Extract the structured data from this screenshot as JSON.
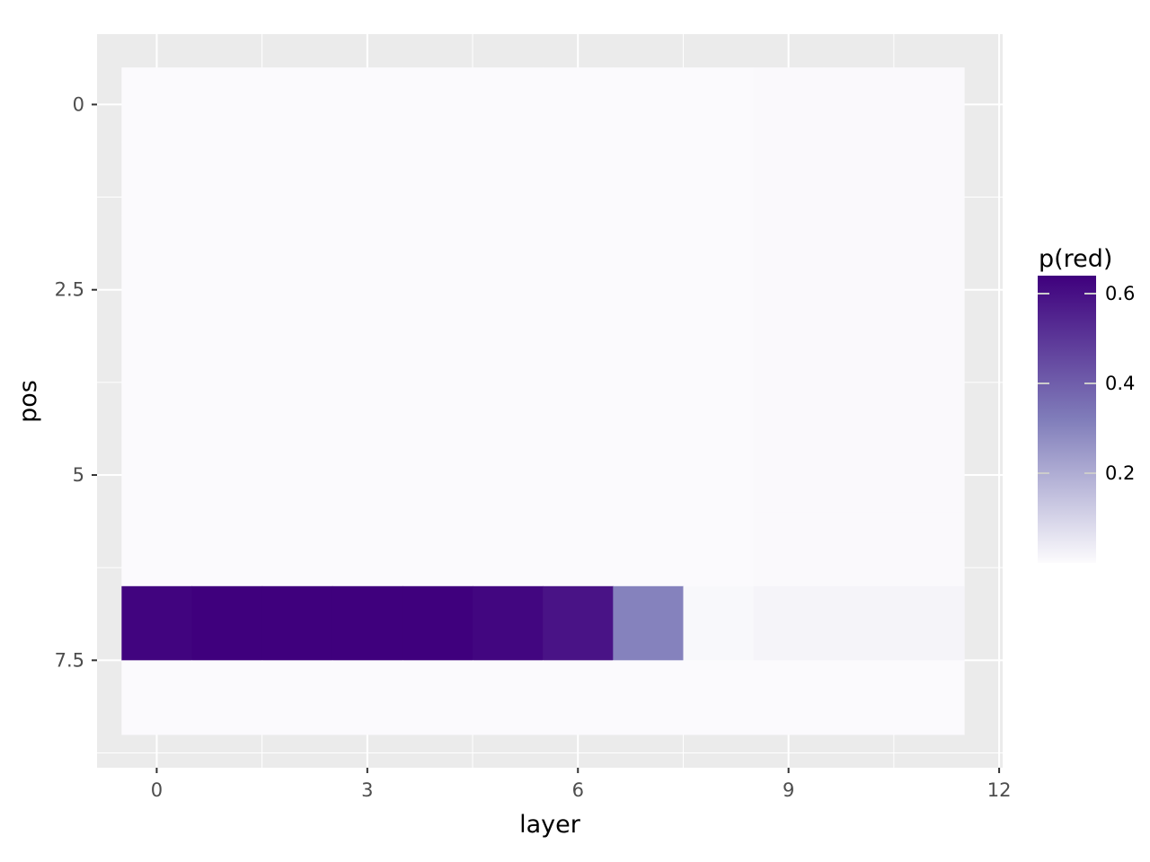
{
  "chart_data": {
    "type": "heatmap",
    "xlabel": "layer",
    "ylabel": "pos",
    "x": [
      0,
      1,
      2,
      3,
      4,
      5,
      6,
      7,
      8,
      9,
      10,
      11
    ],
    "y": [
      0,
      1,
      2,
      3,
      4,
      5,
      6,
      7,
      8
    ],
    "xlim": [
      -0.85,
      12.05
    ],
    "ylim": [
      -0.95,
      8.95
    ],
    "y_reversed": true,
    "x_ticks": [
      0,
      3,
      6,
      9,
      12
    ],
    "x_tick_labels": [
      "0",
      "3",
      "6",
      "9",
      "12"
    ],
    "y_ticks": [
      0,
      2.5,
      5,
      7.5
    ],
    "y_tick_labels": [
      "0",
      "2.5",
      "5",
      "7.5"
    ],
    "grid": true,
    "background_color": "#ebebeb",
    "values": [
      [
        0.002,
        0.002,
        0.002,
        0.002,
        0.002,
        0.002,
        0.002,
        0.002,
        0.002,
        0.006,
        0.006,
        0.006
      ],
      [
        0.002,
        0.002,
        0.002,
        0.002,
        0.002,
        0.002,
        0.002,
        0.002,
        0.002,
        0.006,
        0.006,
        0.006
      ],
      [
        0.002,
        0.002,
        0.002,
        0.002,
        0.002,
        0.002,
        0.002,
        0.002,
        0.002,
        0.006,
        0.006,
        0.006
      ],
      [
        0.002,
        0.002,
        0.002,
        0.002,
        0.002,
        0.002,
        0.002,
        0.002,
        0.002,
        0.006,
        0.006,
        0.006
      ],
      [
        0.002,
        0.002,
        0.002,
        0.002,
        0.002,
        0.002,
        0.002,
        0.002,
        0.002,
        0.006,
        0.006,
        0.006
      ],
      [
        0.002,
        0.002,
        0.002,
        0.002,
        0.002,
        0.002,
        0.002,
        0.002,
        0.002,
        0.006,
        0.006,
        0.006
      ],
      [
        0.002,
        0.002,
        0.002,
        0.002,
        0.002,
        0.002,
        0.002,
        0.002,
        0.002,
        0.006,
        0.006,
        0.006
      ],
      [
        0.625,
        0.64,
        0.64,
        0.64,
        0.64,
        0.615,
        0.56,
        0.31,
        0.01,
        0.02,
        0.02,
        0.02
      ],
      [
        0.002,
        0.002,
        0.002,
        0.002,
        0.002,
        0.002,
        0.002,
        0.002,
        0.002,
        0.002,
        0.002,
        0.002
      ]
    ],
    "legend": {
      "title": "p(red)",
      "placement": "right",
      "breaks": [
        0.6,
        0.4,
        0.2
      ],
      "labels": [
        "0.6",
        "0.4",
        "0.2"
      ],
      "range": [
        0.0,
        0.64
      ],
      "color_low": "#fcfbfd",
      "color_high": "#3f007d"
    }
  }
}
